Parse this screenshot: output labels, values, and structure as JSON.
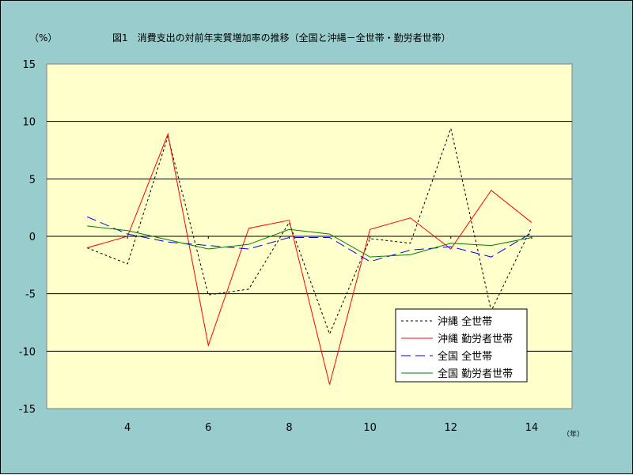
{
  "chart_data": {
    "type": "line",
    "title": "図1　消費支出の対前年実質増加率の推移（全国と沖縄－全世帯・勤労者世帯）",
    "ylabel": "（%）",
    "xlabel": "（年）",
    "ylim": [
      -15,
      15
    ],
    "yticks": [
      15,
      10,
      5,
      0,
      -5,
      -10,
      -15
    ],
    "xlim": [
      2,
      15
    ],
    "xticks": [
      4,
      6,
      8,
      10,
      12,
      14
    ],
    "x": [
      3,
      4,
      5,
      6,
      7,
      8,
      9,
      10,
      11,
      12,
      13,
      14
    ],
    "grid": "horizontal",
    "legend_position": "bottom-right",
    "series": [
      {
        "name": "沖縄 全世帯",
        "color": "#000000",
        "dash": "3,3",
        "values": [
          -1.0,
          -2.4,
          8.7,
          -5.1,
          -4.6,
          1.2,
          -8.5,
          -0.2,
          -0.6,
          9.4,
          -6.5,
          0.8
        ]
      },
      {
        "name": "沖縄 勤労者世帯",
        "color": "#ff0000",
        "dash": "",
        "values": [
          -1.0,
          0.0,
          8.9,
          -9.5,
          0.7,
          1.4,
          -12.9,
          0.6,
          1.6,
          -1.1,
          4.0,
          1.2
        ]
      },
      {
        "name": "全国 全世帯",
        "color": "#0000ff",
        "dash": "12,6",
        "values": [
          1.7,
          0.2,
          -0.5,
          -0.8,
          -1.1,
          -0.1,
          -0.1,
          -2.2,
          -1.2,
          -0.9,
          -1.8,
          0.3
        ]
      },
      {
        "name": "全国 勤労者世帯",
        "color": "#008000",
        "dash": "",
        "values": [
          0.9,
          0.5,
          -0.3,
          -1.1,
          -0.7,
          0.6,
          0.2,
          -1.8,
          -1.6,
          -0.6,
          -0.8,
          -0.1
        ]
      }
    ]
  }
}
